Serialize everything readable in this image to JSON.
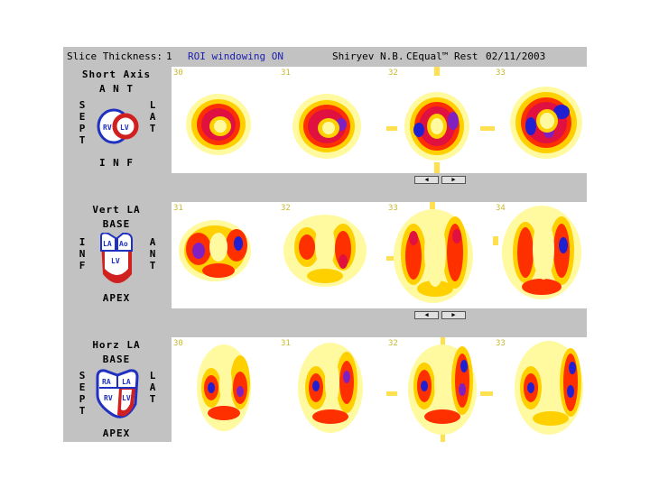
{
  "header": {
    "slice_thickness_label": "Slice Thickness:",
    "slice_thickness_value": "1",
    "roi_status": "ROI windowing ON",
    "patient": "Shiryev N.B.",
    "study": "CEqual™ Rest",
    "date": "02/11/2003"
  },
  "short_axis": {
    "title": "Short Axis",
    "top": "A N T",
    "bottom": "I N F",
    "left": "S\nE\nP\nT",
    "right": "L\nA\nT",
    "chamber_rv": "RV",
    "chamber_lv": "LV",
    "slices": [
      "30",
      "31",
      "32",
      "33"
    ]
  },
  "vert_la": {
    "title": "Vert LA",
    "top": "BASE",
    "bottom": "APEX",
    "left": "I\nN\nF",
    "right": "A\nN\nT",
    "chamber_la": "LA",
    "chamber_ao": "Ao",
    "chamber_lv": "LV",
    "slices": [
      "31",
      "32",
      "33",
      "34"
    ]
  },
  "horz_la": {
    "title": "Horz LA",
    "top": "BASE",
    "bottom": "APEX",
    "left": "S\nE\nP\nT",
    "right": "L\nA\nT",
    "chamber_ra": "RA",
    "chamber_la": "LA",
    "chamber_rv": "RV",
    "chamber_lv": "LV",
    "slices": [
      "30",
      "31",
      "32",
      "33"
    ]
  },
  "nav": {
    "prev_icon": "triangle-left-icon",
    "next_icon": "triangle-right-icon"
  },
  "colors": {
    "frame": "#c2c2c2",
    "roi_text": "#2020b0",
    "slice_label": "#c8b830",
    "rv_outline": "#2030c0",
    "lv_outline": "#d02020"
  }
}
